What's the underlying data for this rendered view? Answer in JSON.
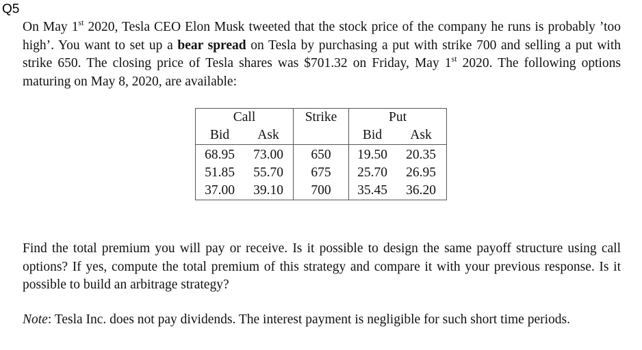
{
  "question_label": "Q5",
  "para1": {
    "a": "On May 1",
    "sup1": "st",
    "b": " 2020, Tesla CEO Elon Musk tweeted that the stock price of the company he runs is probably ’too high’. You want to set up a ",
    "bold": "bear spread",
    "c": " on Tesla by purchasing a put with strike 700 and selling a put with strike 650. The closing price of Tesla shares was $701.32 on Friday, May 1",
    "sup2": "st",
    "d": " 2020. The following options maturing on May 8, 2020, are available:"
  },
  "table": {
    "group_headers": {
      "call": "Call",
      "strike": "Strike",
      "put": "Put"
    },
    "sub_headers": {
      "call_bid": "Bid",
      "call_ask": "Ask",
      "put_bid": "Bid",
      "put_ask": "Ask"
    },
    "rows": [
      {
        "call_bid": "68.95",
        "call_ask": "73.00",
        "strike": "650",
        "put_bid": "19.50",
        "put_ask": "20.35"
      },
      {
        "call_bid": "51.85",
        "call_ask": "55.70",
        "strike": "675",
        "put_bid": "25.70",
        "put_ask": "26.95"
      },
      {
        "call_bid": "37.00",
        "call_ask": "39.10",
        "strike": "700",
        "put_bid": "35.45",
        "put_ask": "36.20"
      }
    ]
  },
  "para2": "Find the total premium you will pay or receive. Is it possible to design the same payoff structure using call options? If yes, compute the total premium of this strategy and compare it with your previous response. Is it possible to build an arbitrage strategy?",
  "para3": {
    "note_label": "Note",
    "text": ": Tesla Inc. does not pay dividends. The interest payment is negligible for such short time periods."
  }
}
